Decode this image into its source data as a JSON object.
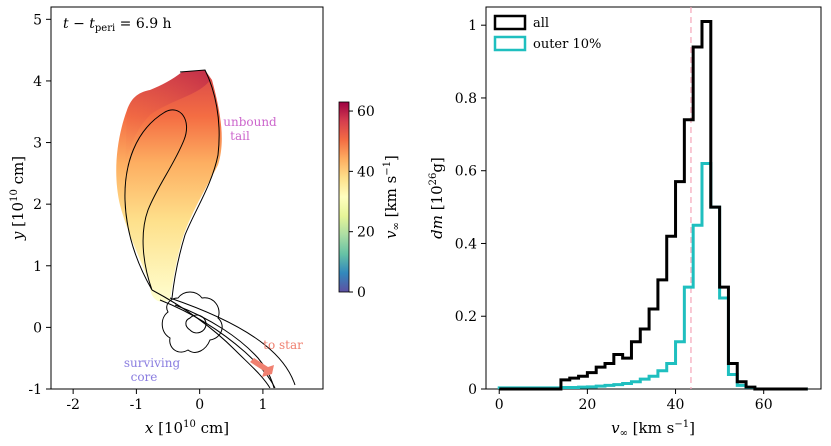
{
  "chart_data": [
    {
      "type": "heatmap",
      "title": "",
      "time_label": "t − t",
      "time_sub": "peri",
      "time_value": " = 6.9 h",
      "xlabel_var": "x",
      "xlabel_unit_pre": " [10",
      "xlabel_exp": "10",
      "xlabel_unit_post": " cm]",
      "ylabel_var": "y",
      "ylabel_unit_pre": " [10",
      "ylabel_exp": "10",
      "ylabel_unit_post": " cm]",
      "xlim": [
        -2.35,
        1.95
      ],
      "ylim": [
        -1.0,
        5.2
      ],
      "xticks": [
        -2,
        -1,
        0,
        1
      ],
      "yticks": [
        -1,
        0,
        1,
        2,
        3,
        4,
        5
      ],
      "colorbar": {
        "label_var": "v",
        "label_sub": "∞",
        "label_unit": " [km s",
        "label_exp": "−1",
        "label_close": "]",
        "range": [
          0,
          63
        ],
        "ticks": [
          0,
          20,
          40,
          60
        ],
        "colormap": "Spectral_r"
      },
      "annotations": [
        {
          "text": "unbound",
          "color": "#cc66cc"
        },
        {
          "text": "tail",
          "color": "#cc66cc"
        },
        {
          "text": "to star",
          "color": "#f08070"
        },
        {
          "text": "surviving",
          "color": "#8a7de0"
        },
        {
          "text": "core",
          "color": "#8a7de0"
        }
      ]
    },
    {
      "type": "histogram",
      "title": "",
      "xlabel_var": "v",
      "xlabel_sub": "∞",
      "xlabel_unit": " [km s",
      "xlabel_exp": "−1",
      "xlabel_close": "]",
      "ylabel_var": "dm",
      "ylabel_unit_pre": " [10",
      "ylabel_exp": "26",
      "ylabel_unit_post": "g]",
      "xlim": [
        -3,
        73
      ],
      "ylim": [
        0,
        1.05
      ],
      "xticks": [
        0,
        20,
        40,
        60
      ],
      "yticks": [
        0,
        0.2,
        0.4,
        0.6,
        0.8,
        1
      ],
      "ytick_labels": [
        "0",
        "0.2",
        "0.4",
        "0.6",
        "0.8",
        "1"
      ],
      "vline": {
        "x": 43.5,
        "color": "#f4a6b8",
        "style": "dashed"
      },
      "legend_position": "top-left",
      "bin_edges": [
        0,
        2,
        4,
        6,
        8,
        10,
        12,
        14,
        16,
        18,
        20,
        22,
        24,
        26,
        28,
        30,
        32,
        34,
        36,
        38,
        40,
        42,
        44,
        46,
        48,
        50,
        52,
        54,
        56,
        58,
        60,
        62,
        64,
        66,
        68,
        70
      ],
      "series": [
        {
          "name": "all",
          "color": "#000000",
          "values": [
            0,
            0,
            0,
            0,
            0,
            0,
            0,
            0.025,
            0.03,
            0.035,
            0.045,
            0.06,
            0.07,
            0.095,
            0.085,
            0.13,
            0.165,
            0.22,
            0.3,
            0.42,
            0.57,
            0.74,
            0.94,
            1.01,
            0.5,
            0.28,
            0.07,
            0.02,
            0.005,
            0,
            0,
            0,
            0,
            0,
            0
          ]
        },
        {
          "name": "outer 10%",
          "color": "#1fbfbf",
          "values": [
            0.003,
            0.003,
            0.003,
            0.003,
            0.003,
            0.003,
            0.003,
            0.004,
            0.004,
            0.005,
            0.006,
            0.008,
            0.01,
            0.012,
            0.015,
            0.02,
            0.027,
            0.035,
            0.05,
            0.07,
            0.13,
            0.28,
            0.45,
            0.62,
            0.5,
            0.25,
            0.04,
            0.01,
            0.004,
            0,
            0,
            0,
            0,
            0,
            0
          ]
        }
      ]
    }
  ]
}
